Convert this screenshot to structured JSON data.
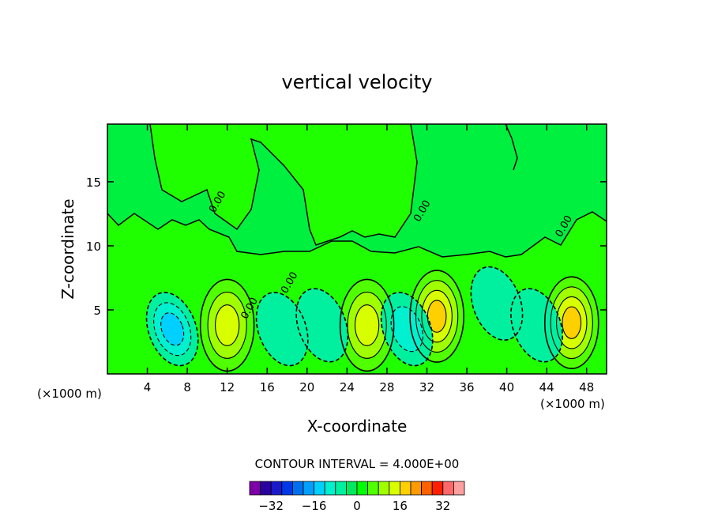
{
  "chart_data": {
    "type": "heatmap",
    "title": "vertical velocity",
    "xlabel": "X-coordinate",
    "ylabel": "Z-coordinate",
    "x_unit_left": "(×1000 m)",
    "x_unit_right": "(×1000 m)",
    "xlim": [
      0,
      50
    ],
    "ylim": [
      0,
      19.5
    ],
    "xticks": [
      4,
      8,
      12,
      16,
      20,
      24,
      28,
      32,
      36,
      40,
      44,
      48
    ],
    "yticks": [
      5,
      10,
      15
    ],
    "contour_labels": [
      {
        "text": "0.00",
        "x": 11.3,
        "y": 13.3
      },
      {
        "text": "0.00",
        "x": 31.8,
        "y": 12.6
      },
      {
        "text": "0.00",
        "x": 46.0,
        "y": 11.4
      },
      {
        "text": "0.00",
        "x": 18.5,
        "y": 7.0
      },
      {
        "text": "0.00",
        "x": 14.5,
        "y": 5.0
      }
    ],
    "features": [
      {
        "kind": "updraft",
        "x": 12.0,
        "z": 3.8,
        "peak": 14
      },
      {
        "kind": "updraft",
        "x": 26.0,
        "z": 3.8,
        "peak": 13
      },
      {
        "kind": "updraft",
        "x": 33.0,
        "z": 4.5,
        "peak": 17
      },
      {
        "kind": "updraft",
        "x": 46.5,
        "z": 4.0,
        "peak": 16
      },
      {
        "kind": "downdraft",
        "x": 6.5,
        "z": 3.5,
        "peak": -14
      },
      {
        "kind": "downdraft",
        "x": 17.5,
        "z": 3.5,
        "peak": -7
      },
      {
        "kind": "downdraft",
        "x": 21.5,
        "z": 3.8,
        "peak": -7
      },
      {
        "kind": "downdraft",
        "x": 30.0,
        "z": 3.5,
        "peak": -10
      },
      {
        "kind": "downdraft",
        "x": 39.0,
        "z": 5.5,
        "peak": -7
      },
      {
        "kind": "downdraft",
        "x": 43.0,
        "z": 3.8,
        "peak": -6
      }
    ],
    "contour_interval_text": "CONTOUR INTERVAL = 4.000E+00",
    "colorbar": {
      "levels": [
        -36,
        -32,
        -28,
        -24,
        -20,
        -16,
        -12,
        -8,
        -4,
        0,
        4,
        8,
        12,
        16,
        20,
        24,
        28,
        32,
        36
      ],
      "tick_labels": [
        "-32",
        "-16",
        "0",
        "16",
        "32"
      ],
      "colors": [
        "#7d00a8",
        "#2a00a0",
        "#1a1acc",
        "#0038e8",
        "#0070f0",
        "#00a0ff",
        "#00d0ff",
        "#00f0d0",
        "#00f0a0",
        "#00e860",
        "#00ff00",
        "#50ff00",
        "#a0ff00",
        "#d8ff00",
        "#ffd000",
        "#ff9a00",
        "#ff6000",
        "#ff2000",
        "#ff6868",
        "#ffa0a0"
      ]
    }
  }
}
